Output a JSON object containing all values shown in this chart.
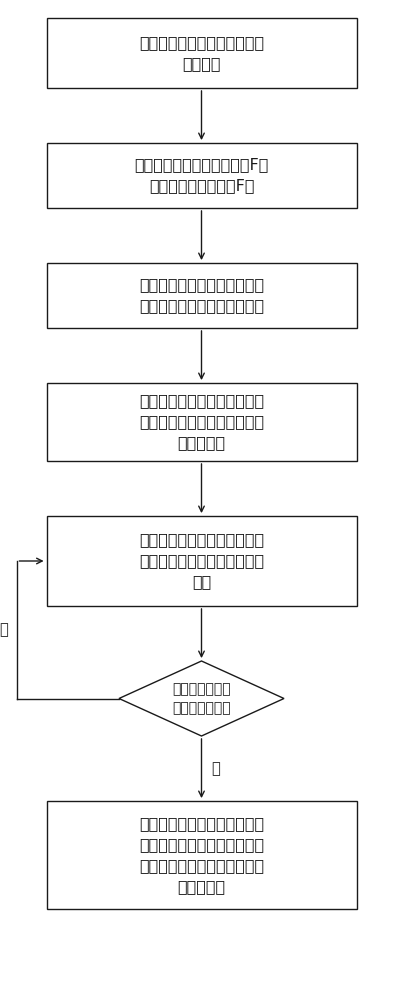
{
  "bg_color": "#ffffff",
  "box_color": "#ffffff",
  "box_edge_color": "#1a1a1a",
  "arrow_color": "#1a1a1a",
  "text_color": "#1a1a1a",
  "font_size": 11.5,
  "small_font_size": 10.5,
  "b1_text": "制作面内剪切试验件和面外剥\n离试验件",
  "b2_text": "获得最大面内剪切破坏载荷F切\n和面外剥离破坏载荷F剥",
  "b3_text": "建立仿真模型，获得面内最大\n破坏强度和面外最大破坏强度",
  "b4_text": "获得各种工况条件下粘接胶层\n的最大面内剪切应力和最大面\n外剪切应力",
  "b5_text": "定义粘接胶层的最大许用应力\n，并对比其与最大剪切应力的\n大小",
  "dia_text": "最大剪切应力小\n于最大许用应力",
  "b6_text": "通过改动仿真模型，计算获得\n不同缺陷位置、不同缺陷面积\n以及不同胶层厚度条件下的胶\n层应力变化",
  "no_label": "否",
  "yes_label": "是"
}
